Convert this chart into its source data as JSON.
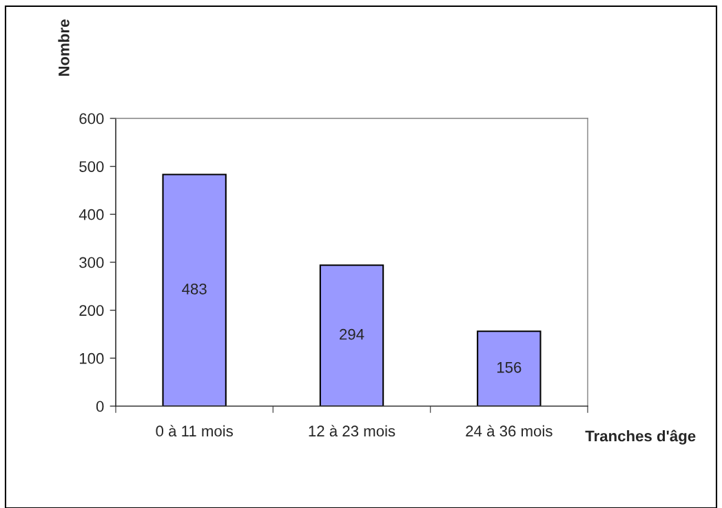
{
  "chart_data": {
    "type": "bar",
    "xlabel": "Tranches d'âge",
    "ylabel": "Nombre",
    "categories": [
      "0 à 11 mois",
      "12 à 23 mois",
      "24 à 36 mois"
    ],
    "values": [
      483,
      294,
      156
    ],
    "color": "#9999ff",
    "ylim": [
      0,
      600
    ],
    "yticks": [
      0,
      100,
      200,
      300,
      400,
      500,
      600
    ],
    "data_labels": true
  }
}
